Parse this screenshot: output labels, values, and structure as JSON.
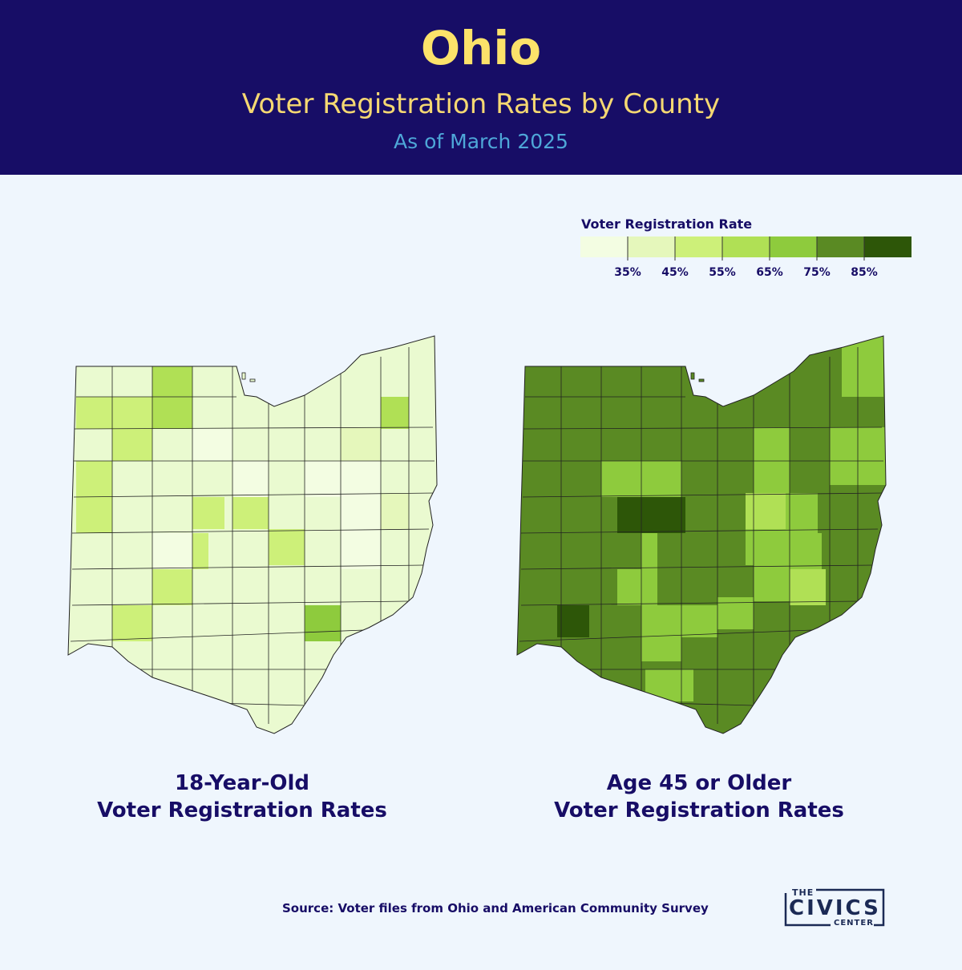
{
  "header": {
    "title": "Ohio",
    "subtitle": "Voter Registration Rates by County",
    "as_of": "As of March 2025"
  },
  "legend": {
    "title": "Voter Registration Rate",
    "bins": [
      {
        "color": "#f3fde2"
      },
      {
        "color": "#e5f7bb"
      },
      {
        "color": "#cdf079"
      },
      {
        "color": "#b0e055"
      },
      {
        "color": "#8ecb3d"
      },
      {
        "color": "#5a8a23"
      },
      {
        "color": "#2d5608"
      }
    ],
    "tick_labels": [
      "35%",
      "45%",
      "55%",
      "65%",
      "75%",
      "85%"
    ]
  },
  "maps": [
    {
      "label_line1": "18-Year-Old",
      "label_line2": "Voter Registration Rates",
      "base_color": "#eafad0"
    },
    {
      "label_line1": "Age 45 or Older",
      "label_line2": "Voter Registration Rates",
      "base_color": "#5a8a23"
    }
  ],
  "source": "Source: Voter files from Ohio and American Community Survey",
  "logo": {
    "top": "THE",
    "main": "CIVICS",
    "bottom": "CENTER"
  }
}
